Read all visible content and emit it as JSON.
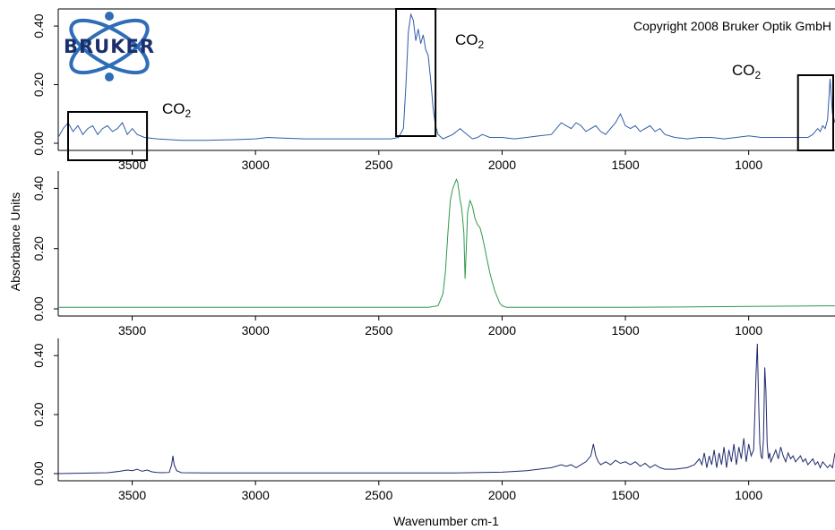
{
  "y_axis_label": "Absorbance Units",
  "x_axis_label": "Wavenumber cm-1",
  "copyright": "Copyright 2008 Bruker Optik GmbH",
  "logo_text": "BRUKER",
  "co2": {
    "base": "CO",
    "sub": "2"
  },
  "chart_data": [
    {
      "type": "line",
      "title": "",
      "xlabel": "",
      "ylabel": "",
      "xlim": [
        3800,
        650
      ],
      "ylim": [
        0,
        0.44
      ],
      "x_ticks": [
        3500,
        3000,
        2500,
        2000,
        1500,
        1000
      ],
      "x_tick_labels": [
        "3500",
        "3000",
        "2500",
        "2000",
        "1500",
        "1000"
      ],
      "y_ticks": [
        0,
        0.2,
        0.4
      ],
      "y_tick_labels": [
        "0.00",
        "0.20",
        "0.40"
      ],
      "grid": false,
      "series": [
        {
          "color": "#2f5da8",
          "x": [
            3800,
            3780,
            3760,
            3740,
            3720,
            3700,
            3680,
            3660,
            3640,
            3620,
            3600,
            3580,
            3560,
            3540,
            3520,
            3500,
            3480,
            3450,
            3400,
            3300,
            3200,
            3100,
            3000,
            2950,
            2900,
            2800,
            2700,
            2600,
            2500,
            2450,
            2420,
            2400,
            2390,
            2380,
            2370,
            2360,
            2350,
            2340,
            2330,
            2320,
            2310,
            2300,
            2290,
            2280,
            2270,
            2260,
            2240,
            2200,
            2170,
            2150,
            2120,
            2100,
            2080,
            2050,
            2000,
            1950,
            1900,
            1850,
            1800,
            1780,
            1760,
            1740,
            1720,
            1700,
            1680,
            1660,
            1640,
            1620,
            1600,
            1580,
            1560,
            1540,
            1520,
            1510,
            1500,
            1480,
            1460,
            1440,
            1420,
            1400,
            1380,
            1360,
            1340,
            1300,
            1250,
            1200,
            1150,
            1100,
            1050,
            1000,
            950,
            900,
            850,
            800,
            760,
            740,
            720,
            710,
            700,
            690,
            680,
            670,
            660,
            650
          ],
          "y": [
            0.02,
            0.05,
            0.07,
            0.04,
            0.06,
            0.03,
            0.05,
            0.06,
            0.03,
            0.05,
            0.06,
            0.04,
            0.05,
            0.07,
            0.03,
            0.05,
            0.03,
            0.02,
            0.015,
            0.01,
            0.01,
            0.012,
            0.015,
            0.02,
            0.018,
            0.015,
            0.015,
            0.015,
            0.015,
            0.015,
            0.02,
            0.05,
            0.2,
            0.38,
            0.44,
            0.42,
            0.35,
            0.39,
            0.34,
            0.37,
            0.32,
            0.3,
            0.22,
            0.12,
            0.06,
            0.03,
            0.015,
            0.03,
            0.05,
            0.035,
            0.015,
            0.02,
            0.03,
            0.02,
            0.02,
            0.015,
            0.02,
            0.025,
            0.03,
            0.05,
            0.07,
            0.06,
            0.05,
            0.07,
            0.06,
            0.04,
            0.05,
            0.06,
            0.04,
            0.03,
            0.05,
            0.07,
            0.1,
            0.08,
            0.06,
            0.05,
            0.06,
            0.04,
            0.05,
            0.06,
            0.04,
            0.05,
            0.03,
            0.02,
            0.015,
            0.02,
            0.02,
            0.015,
            0.02,
            0.025,
            0.02,
            0.02,
            0.02,
            0.02,
            0.02,
            0.03,
            0.05,
            0.04,
            0.06,
            0.05,
            0.08,
            0.22,
            0.1,
            0.07
          ]
        }
      ]
    },
    {
      "type": "line",
      "title": "",
      "xlabel": "",
      "ylabel": "Absorbance Units",
      "xlim": [
        3800,
        650
      ],
      "ylim": [
        0,
        0.44
      ],
      "x_ticks": [
        3500,
        3000,
        2500,
        2000,
        1500,
        1000
      ],
      "x_tick_labels": [
        "3500",
        "3000",
        "2500",
        "2000",
        "1500",
        "1000"
      ],
      "y_ticks": [
        0,
        0.2,
        0.4
      ],
      "y_tick_labels": [
        "0.00",
        "0.20",
        "0.40"
      ],
      "grid": false,
      "series": [
        {
          "color": "#2e9a4a",
          "x": [
            3800,
            3500,
            3000,
            2500,
            2300,
            2260,
            2240,
            2230,
            2220,
            2210,
            2200,
            2190,
            2185,
            2180,
            2175,
            2170,
            2165,
            2160,
            2155,
            2150,
            2145,
            2140,
            2130,
            2120,
            2110,
            2100,
            2090,
            2080,
            2070,
            2060,
            2050,
            2040,
            2030,
            2020,
            2010,
            2000,
            1990,
            1980,
            1900,
            1500,
            1000,
            700,
            650
          ],
          "y": [
            0.005,
            0.005,
            0.005,
            0.005,
            0.005,
            0.01,
            0.05,
            0.12,
            0.25,
            0.36,
            0.4,
            0.42,
            0.43,
            0.42,
            0.39,
            0.36,
            0.34,
            0.3,
            0.25,
            0.1,
            0.2,
            0.32,
            0.36,
            0.34,
            0.3,
            0.28,
            0.27,
            0.24,
            0.2,
            0.16,
            0.12,
            0.09,
            0.06,
            0.04,
            0.02,
            0.01,
            0.007,
            0.005,
            0.005,
            0.005,
            0.008,
            0.01,
            0.01
          ]
        }
      ]
    },
    {
      "type": "line",
      "title": "",
      "xlabel": "Wavenumber cm-1",
      "ylabel": "",
      "xlim": [
        3800,
        650
      ],
      "ylim": [
        0,
        0.44
      ],
      "x_ticks": [
        3500,
        3000,
        2500,
        2000,
        1500,
        1000
      ],
      "x_tick_labels": [
        "3500",
        "3000",
        "2500",
        "2000",
        "1500",
        "1000"
      ],
      "y_ticks": [
        0,
        0.2,
        0.4
      ],
      "y_tick_labels": [
        "0.00",
        "0.20",
        "0.40"
      ],
      "grid": false,
      "series": [
        {
          "color": "#1f2a6b",
          "x": [
            3800,
            3600,
            3550,
            3520,
            3500,
            3480,
            3460,
            3440,
            3420,
            3400,
            3380,
            3350,
            3340,
            3335,
            3330,
            3320,
            3300,
            3200,
            3000,
            2800,
            2500,
            2200,
            2000,
            1900,
            1800,
            1760,
            1740,
            1720,
            1700,
            1680,
            1660,
            1640,
            1630,
            1620,
            1610,
            1600,
            1580,
            1560,
            1540,
            1520,
            1500,
            1480,
            1460,
            1440,
            1420,
            1400,
            1380,
            1360,
            1340,
            1300,
            1250,
            1220,
            1200,
            1190,
            1180,
            1170,
            1160,
            1150,
            1140,
            1130,
            1120,
            1110,
            1100,
            1090,
            1080,
            1070,
            1060,
            1050,
            1040,
            1030,
            1020,
            1010,
            1000,
            990,
            980,
            975,
            970,
            965,
            960,
            955,
            950,
            945,
            940,
            935,
            930,
            925,
            920,
            915,
            910,
            900,
            890,
            880,
            870,
            860,
            850,
            840,
            830,
            820,
            810,
            800,
            790,
            780,
            770,
            760,
            750,
            740,
            730,
            720,
            710,
            700,
            690,
            680,
            670,
            660,
            650
          ],
          "y": [
            0.0,
            0.003,
            0.008,
            0.012,
            0.01,
            0.015,
            0.008,
            0.012,
            0.006,
            0.004,
            0.003,
            0.004,
            0.03,
            0.06,
            0.03,
            0.01,
            0.003,
            0.002,
            0.002,
            0.002,
            0.002,
            0.002,
            0.005,
            0.01,
            0.02,
            0.03,
            0.025,
            0.03,
            0.02,
            0.03,
            0.04,
            0.06,
            0.1,
            0.06,
            0.04,
            0.03,
            0.04,
            0.03,
            0.045,
            0.035,
            0.04,
            0.03,
            0.04,
            0.025,
            0.035,
            0.02,
            0.03,
            0.02,
            0.015,
            0.015,
            0.02,
            0.03,
            0.05,
            0.03,
            0.07,
            0.02,
            0.06,
            0.03,
            0.08,
            0.02,
            0.07,
            0.03,
            0.09,
            0.02,
            0.08,
            0.04,
            0.1,
            0.03,
            0.09,
            0.05,
            0.12,
            0.04,
            0.1,
            0.06,
            0.08,
            0.2,
            0.34,
            0.44,
            0.25,
            0.1,
            0.06,
            0.05,
            0.12,
            0.36,
            0.28,
            0.1,
            0.05,
            0.07,
            0.04,
            0.06,
            0.08,
            0.05,
            0.09,
            0.06,
            0.04,
            0.07,
            0.05,
            0.06,
            0.04,
            0.05,
            0.06,
            0.04,
            0.05,
            0.03,
            0.04,
            0.05,
            0.03,
            0.04,
            0.02,
            0.04,
            0.03,
            0.02,
            0.03,
            0.02,
            0.07
          ]
        }
      ]
    }
  ],
  "annotations": {
    "co2_boxes": [
      {
        "x_from": 3800,
        "x_to": 3440
      },
      {
        "x_from": 2430,
        "x_to": 2270
      },
      {
        "x_from": 800,
        "x_to": 650
      }
    ]
  }
}
